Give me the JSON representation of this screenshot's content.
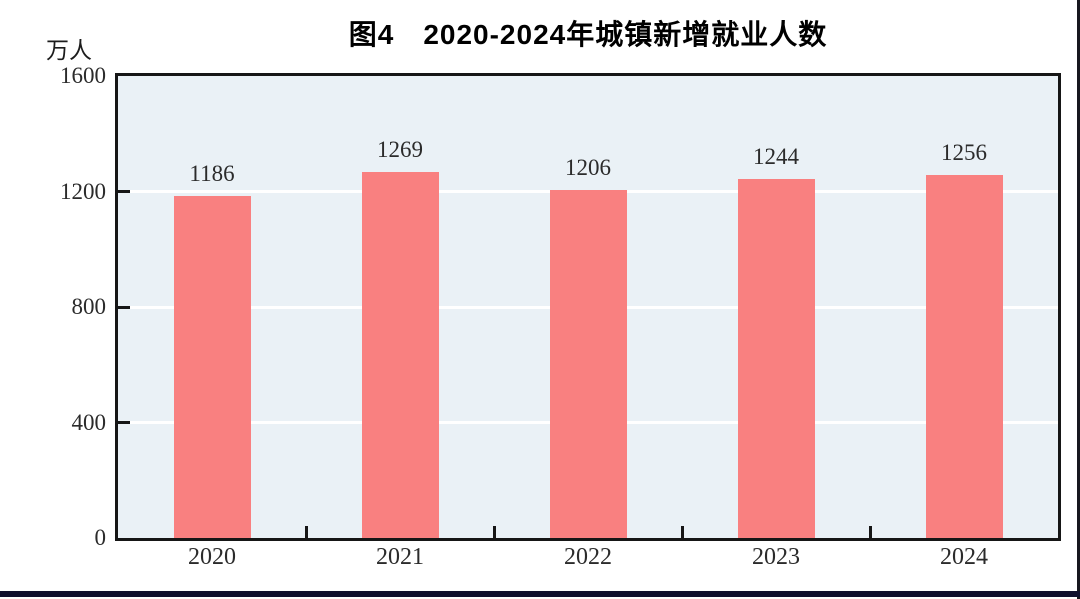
{
  "page": {
    "bottom_rule_color": "#0f0f2d",
    "right_rule_color": "#17171f"
  },
  "chart_data": {
    "type": "bar",
    "title": "图4　2020-2024年城镇新增就业人数",
    "ylabel": "万人",
    "categories": [
      "2020",
      "2021",
      "2022",
      "2023",
      "2024"
    ],
    "values": [
      1186,
      1269,
      1206,
      1244,
      1256
    ],
    "value_label_format": "plain",
    "ylim": [
      0,
      1600
    ],
    "y_ticks": [
      0,
      400,
      800,
      1200,
      1600
    ],
    "grid": "horizontal",
    "legend_position": "none",
    "bar_color": "#F98080",
    "plot_bg_color": "#EAF1F6",
    "gridline_color": "#FFFFFF",
    "axis_border_color": "#161616",
    "text_color": "#2b2b2b"
  }
}
